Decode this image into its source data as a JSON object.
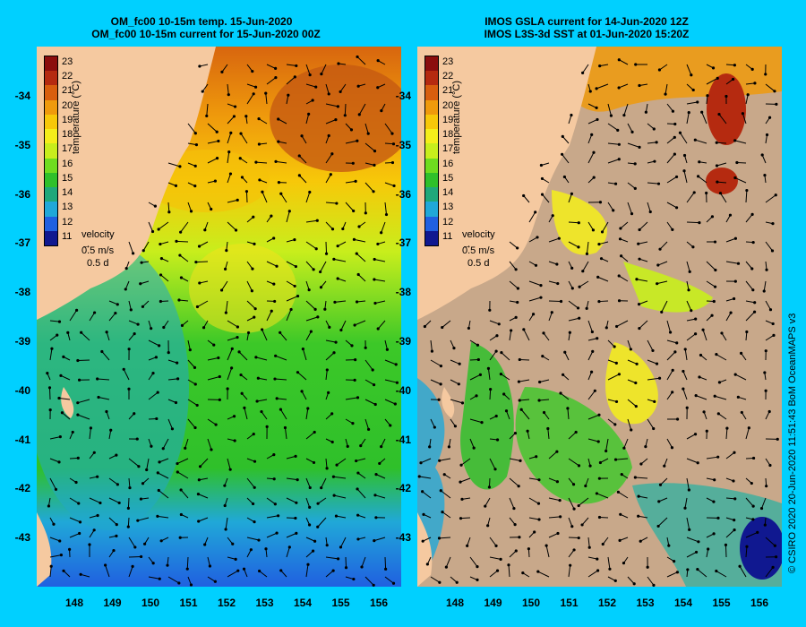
{
  "left_panel": {
    "title_line1": "OM_fc00 10-15m temp. 15-Jun-2020",
    "title_line2": "OM_fc00 10-15m current for 15-Jun-2020 00Z"
  },
  "right_panel": {
    "title_line1": "IMOS GSLA current for 14-Jun-2020 12Z",
    "title_line2": "IMOS L3S-3d SST at 01-Jun-2020 15:20Z"
  },
  "y_ticks": [
    "-34",
    "-35",
    "-36",
    "-37",
    "-38",
    "-39",
    "-40",
    "-41",
    "-42",
    "-43"
  ],
  "x_ticks": [
    "148",
    "149",
    "150",
    "151",
    "152",
    "153",
    "154",
    "155",
    "156"
  ],
  "colorbar": {
    "labels": [
      "23",
      "22",
      "21",
      "20",
      "19",
      "18",
      "17",
      "16",
      "15",
      "14",
      "13",
      "12",
      "11"
    ],
    "title": "temperature (°C)",
    "colors": [
      "#8b0d0d",
      "#b52a10",
      "#d85e0e",
      "#ef9a0c",
      "#f7c809",
      "#f5ee1a",
      "#c8ee1c",
      "#6fdc1f",
      "#2fc02a",
      "#1fa87a",
      "#20a8d8",
      "#2060e0",
      "#101890"
    ]
  },
  "velocity_legend": {
    "label": "velocity",
    "speed": "0.5 m/s",
    "duration": "0.5 d"
  },
  "credit": "© CSIRO 2020   20-Jun-2020 11:51:43 BoM OceanMAPS v3",
  "colors": {
    "background": "#00d0ff",
    "land": "#f5c9a0",
    "no_data": "#c8a88a"
  }
}
